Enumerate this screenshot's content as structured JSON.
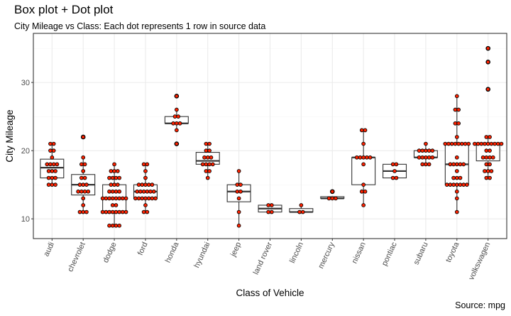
{
  "chart_data": {
    "type": "box+dot",
    "title": "Box plot + Dot plot",
    "subtitle": "City Mileage vs Class: Each dot represents 1 row in source data",
    "caption": "Source: mpg",
    "xlabel": "Class of Vehicle",
    "ylabel": "City Mileage",
    "ylim": [
      7.1,
      37.2
    ],
    "yticks": [
      10,
      20,
      30
    ],
    "grid": true,
    "colors": {
      "dot_fill": "#ff2200",
      "dot_stroke": "#000000",
      "box_stroke": "#333333",
      "grid": "#ebebeb"
    },
    "categories": [
      "audi",
      "chevrolet",
      "dodge",
      "ford",
      "honda",
      "hyundai",
      "jeep",
      "land rover",
      "lincoln",
      "mercury",
      "nissan",
      "pontiac",
      "subaru",
      "toyota",
      "volkswagen"
    ],
    "values": {
      "audi": {
        "21": 2,
        "20": 2,
        "19": 1,
        "18": 4,
        "17": 3,
        "16": 3,
        "15": 3
      },
      "chevrolet": {
        "22": 1,
        "19": 1,
        "18": 2,
        "17": 1,
        "16": 2,
        "15": 3,
        "14": 4,
        "13": 1,
        "12": 1,
        "11": 3
      },
      "dodge": {
        "18": 1,
        "17": 3,
        "16": 4,
        "15": 3,
        "14": 4,
        "13": 8,
        "12": 2,
        "11": 8,
        "9": 4
      },
      "ford": {
        "18": 2,
        "17": 1,
        "16": 1,
        "15": 5,
        "14": 6,
        "13": 7,
        "12": 1,
        "11": 2
      },
      "honda": {
        "28": 1,
        "26": 1,
        "25": 2,
        "24": 3,
        "23": 1,
        "21": 1
      },
      "hyundai": {
        "21": 2,
        "20": 2,
        "19": 3,
        "18": 4,
        "17": 2,
        "16": 1
      },
      "jeep": {
        "17": 1,
        "15": 2,
        "14": 2,
        "13": 1,
        "11": 1,
        "9": 1
      },
      "land rover": {
        "12": 2,
        "11": 2
      },
      "lincoln": {
        "12": 1,
        "11": 2
      },
      "mercury": {
        "14": 1,
        "13": 3
      },
      "nissan": {
        "23": 2,
        "21": 1,
        "19": 5,
        "18": 1,
        "15": 1,
        "14": 2,
        "12": 1
      },
      "pontiac": {
        "18": 2,
        "17": 1,
        "16": 2
      },
      "subaru": {
        "21": 1,
        "20": 5,
        "19": 5,
        "18": 3
      },
      "toyota": {
        "28": 1,
        "26": 2,
        "24": 2,
        "22": 1,
        "21": 8,
        "19": 1,
        "18": 5,
        "17": 1,
        "16": 3,
        "15": 7,
        "14": 1,
        "13": 1,
        "11": 1
      },
      "volkswagen": {
        "35": 1,
        "33": 1,
        "29": 1,
        "22": 2,
        "21": 9,
        "20": 2,
        "19": 4,
        "18": 2,
        "17": 3,
        "16": 2
      }
    }
  }
}
